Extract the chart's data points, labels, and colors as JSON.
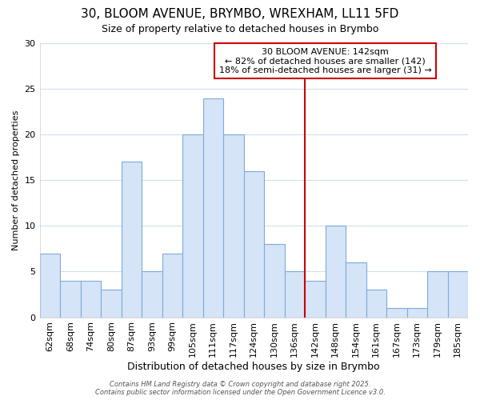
{
  "title1": "30, BLOOM AVENUE, BRYMBO, WREXHAM, LL11 5FD",
  "title2": "Size of property relative to detached houses in Brymbo",
  "xlabel": "Distribution of detached houses by size in Brymbo",
  "ylabel": "Number of detached properties",
  "categories": [
    "62sqm",
    "68sqm",
    "74sqm",
    "80sqm",
    "87sqm",
    "93sqm",
    "99sqm",
    "105sqm",
    "111sqm",
    "117sqm",
    "124sqm",
    "130sqm",
    "136sqm",
    "142sqm",
    "148sqm",
    "154sqm",
    "161sqm",
    "167sqm",
    "173sqm",
    "179sqm",
    "185sqm"
  ],
  "values": [
    7,
    4,
    4,
    3,
    17,
    5,
    7,
    20,
    24,
    20,
    16,
    8,
    5,
    4,
    10,
    6,
    3,
    1,
    1,
    5,
    5
  ],
  "bar_color": "#d6e4f7",
  "bar_edge_color": "#7aaddb",
  "vline_index": 13,
  "vline_color": "#cc0000",
  "annotation_title": "30 BLOOM AVENUE: 142sqm",
  "annotation_line1": "← 82% of detached houses are smaller (142)",
  "annotation_line2": "18% of semi-detached houses are larger (31) →",
  "annotation_box_edge_color": "#cc0000",
  "annotation_box_face_color": "#ffffff",
  "ylim": [
    0,
    30
  ],
  "yticks": [
    0,
    5,
    10,
    15,
    20,
    25,
    30
  ],
  "bg_color": "#ffffff",
  "grid_color": "#d0dff0",
  "footer": "Contains HM Land Registry data © Crown copyright and database right 2025.\nContains public sector information licensed under the Open Government Licence v3.0.",
  "title1_fontsize": 11,
  "title2_fontsize": 9,
  "xlabel_fontsize": 9,
  "ylabel_fontsize": 8,
  "tick_fontsize": 8,
  "footer_fontsize": 6,
  "annotation_fontsize": 8
}
